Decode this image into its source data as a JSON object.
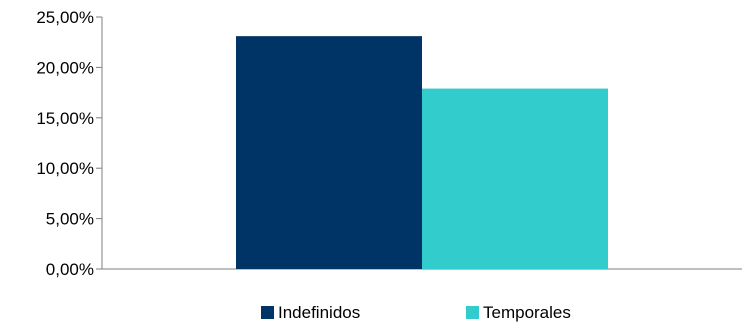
{
  "chart_data": {
    "type": "bar",
    "title": "",
    "xlabel": "",
    "ylabel": "",
    "ylim": [
      0,
      25
    ],
    "y_ticks": [
      0,
      5,
      10,
      15,
      20,
      25
    ],
    "y_tick_labels": [
      "0,00%",
      "5,00%",
      "10,00%",
      "15,00%",
      "20,00%",
      "25,00%"
    ],
    "grid": false,
    "legend_position": "bottom",
    "series": [
      {
        "name": "Indefinidos",
        "values": [
          23.1
        ],
        "color": "#003366"
      },
      {
        "name": "Temporales",
        "values": [
          17.9
        ],
        "color": "#33CCCC"
      }
    ]
  }
}
